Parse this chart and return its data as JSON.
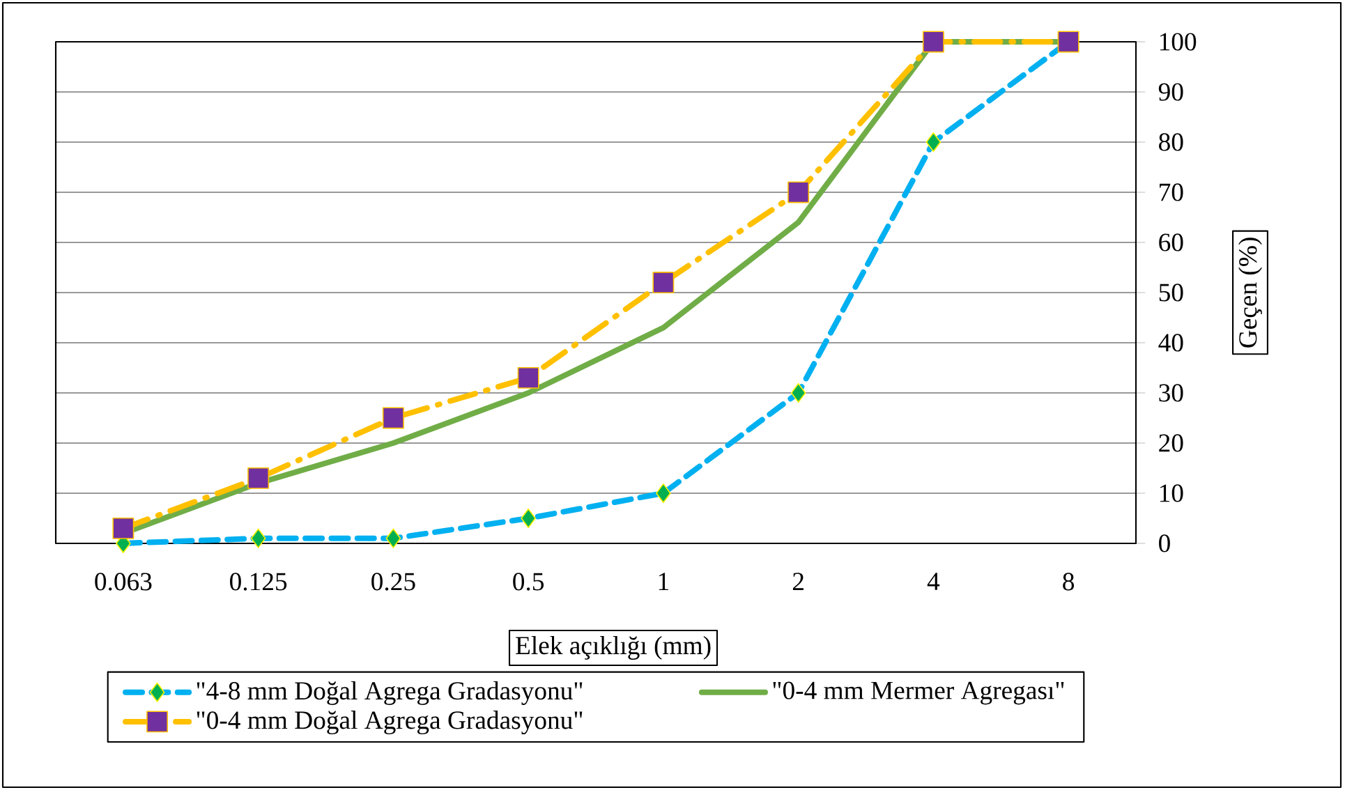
{
  "chart_data": {
    "type": "line",
    "xlabel": "Elek açıklığı (mm)",
    "ylabel": "Geçen  (%)",
    "categories": [
      "0.063",
      "0.125",
      "0.25",
      "0.5",
      "1",
      "2",
      "4",
      "8"
    ],
    "series": [
      {
        "name": "\"4-8 mm Doğal Agrega Gradasyonu\"",
        "color": "#00b0f0",
        "marker": "diamond",
        "line_style": "dashed",
        "values": [
          0,
          1,
          1,
          5,
          10,
          30,
          80,
          100
        ]
      },
      {
        "name": "\"0-4 mm Mermer Agregası\"",
        "color": "#70ad47",
        "line_style": "solid",
        "values": [
          2,
          12,
          20,
          30,
          43,
          64,
          100,
          100
        ]
      },
      {
        "name": "\"0-4 mm Doğal Agrega Gradasyonu\"",
        "color": "#ffc000",
        "marker": "square",
        "line_style": "dashdot",
        "values": [
          3,
          13,
          25,
          33,
          52,
          70,
          100,
          100
        ]
      }
    ],
    "ylim": [
      0,
      100
    ],
    "yticks": [
      0,
      10,
      20,
      30,
      40,
      50,
      60,
      70,
      80,
      90,
      100
    ],
    "grid": "y",
    "legend": "bottom"
  }
}
